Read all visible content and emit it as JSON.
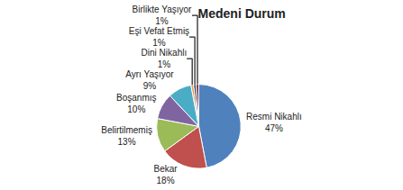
{
  "chart_data": {
    "type": "pie",
    "title": "Medeni Durum",
    "categories": [
      "Resmi Nikahlı",
      "Bekar",
      "Belirtilmemiş",
      "Boşanmış",
      "Ayrı Yaşıyor",
      "Dini Nikahlı",
      "Eşi Vefat Etmiş",
      "Birlikte Yaşıyor"
    ],
    "values": [
      47,
      18,
      13,
      10,
      9,
      1,
      1,
      1
    ],
    "value_labels": [
      "47%",
      "18%",
      "13%",
      "10%",
      "9%",
      "1%",
      "1%",
      "1%"
    ],
    "colors": [
      "#4F81BD",
      "#C0504D",
      "#9BBB59",
      "#8064A2",
      "#4BACC6",
      "#F79646",
      "#2C4D75",
      "#772C2A"
    ],
    "data_labels": true
  }
}
